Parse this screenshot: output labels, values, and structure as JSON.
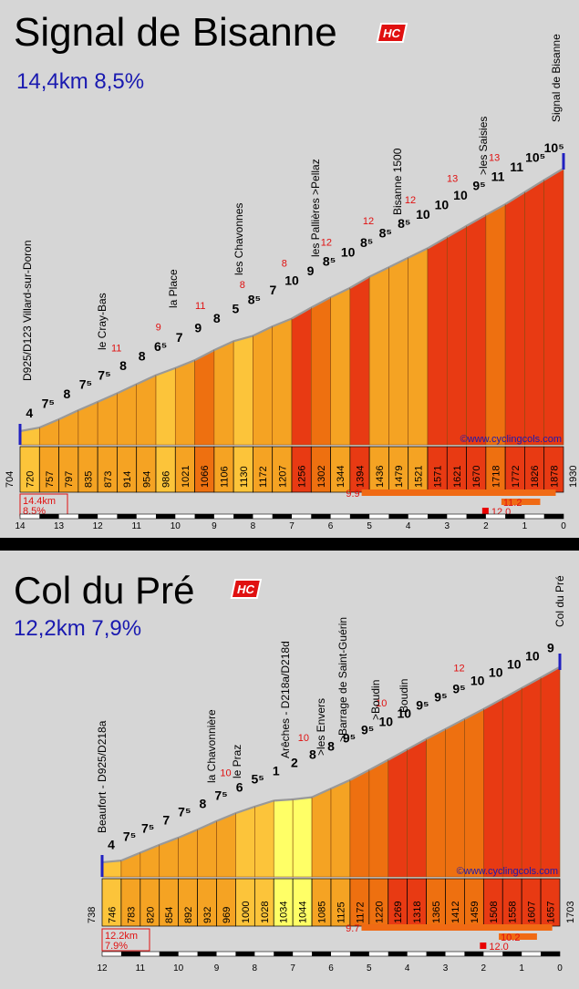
{
  "source": "©www.cyclingcols.com",
  "chart_data": [
    {
      "type": "bar",
      "title": "Signal de Bisanne",
      "badge": "HC",
      "summary": "14,4km 8,5%",
      "summary_box": [
        "14.4km",
        "8.5%"
      ],
      "start_altitude": "704",
      "end_altitude": "1930",
      "altitudes": [
        "720",
        "757",
        "797",
        "835",
        "873",
        "914",
        "954",
        "986",
        "1021",
        "1066",
        "1106",
        "1130",
        "1172",
        "1207",
        "1256",
        "1302",
        "1344",
        "1394",
        "1436",
        "1479",
        "1521",
        "1571",
        "1621",
        "1670",
        "1718",
        "1772",
        "1826",
        "1878"
      ],
      "gradients_half_km": [
        "4",
        "7⁵",
        "8",
        "7⁵",
        "7⁵",
        "8",
        "8",
        "6⁵",
        "7",
        "9",
        "8",
        "5",
        "8⁵",
        "7",
        "10",
        "9",
        "8⁵",
        "10",
        "8⁵",
        "8⁵",
        "8⁵",
        "10",
        "10",
        "10",
        "9⁵",
        "11",
        "11",
        "10⁵",
        "10⁵"
      ],
      "red_labels": [
        "11",
        "9",
        "11",
        "8",
        "8",
        "12",
        "12",
        "12",
        "13",
        "13"
      ],
      "places": [
        "D925/D123 Villard-sur-Doron",
        "le Cray-Bas",
        "la Place",
        "les Chavonnes",
        "les Pallières >Pellaz",
        "Bisanne 1500",
        ">les Saisies",
        "Signal de Bisanne"
      ],
      "km_ticks": [
        "14",
        "13",
        "12",
        "11",
        "10",
        "9",
        "8",
        "7",
        "6",
        "5",
        "4",
        "3",
        "2",
        "1",
        "0"
      ],
      "max_gradients": [
        "9.9",
        "11.2",
        "12.0"
      ],
      "colors": {
        "yellow": "#ffff66",
        "orange": "#f5a323",
        "dark_orange": "#ee7010",
        "red": "#e83a13",
        "max_bar": "#f06a14",
        "max_square": "#e80000"
      }
    },
    {
      "type": "bar",
      "title": "Col du Pré",
      "badge": "HC",
      "summary": "12,2km 7,9%",
      "summary_box": [
        "12.2km",
        "7.9%"
      ],
      "start_altitude": "738",
      "end_altitude": "1703",
      "altitudes": [
        "746",
        "783",
        "820",
        "854",
        "892",
        "932",
        "969",
        "1000",
        "1028",
        "1034",
        "1044",
        "1085",
        "1125",
        "1172",
        "1220",
        "1269",
        "1318",
        "1365",
        "1412",
        "1459",
        "1508",
        "1558",
        "1607",
        "1657"
      ],
      "gradients_half_km": [
        "4",
        "7⁵",
        "7⁵",
        "7",
        "7⁵",
        "8",
        "7⁵",
        "6",
        "5⁵",
        "1",
        "2",
        "8",
        "8",
        "9⁵",
        "9⁵",
        "10",
        "10",
        "9⁵",
        "9⁵",
        "9⁵",
        "10",
        "10",
        "10",
        "10",
        "9"
      ],
      "red_labels": [
        "10",
        "10",
        "10",
        "12"
      ],
      "places": [
        "Beaufort - D925/D218a",
        "la Chavonnière",
        "le Praz",
        "Arêches - D218a/D218d",
        ">les Envers",
        ">Barrage de Saint-Guérin",
        ">Boudin",
        "Boudin",
        "Col du Pré"
      ],
      "km_ticks": [
        "12",
        "11",
        "10",
        "9",
        "8",
        "7",
        "6",
        "5",
        "4",
        "3",
        "2",
        "1",
        "0"
      ],
      "max_gradients": [
        "9.7",
        "10.2",
        "12.0"
      ],
      "colors": {
        "yellow": "#ffff66",
        "orange": "#f5a323",
        "dark_orange": "#ee7010",
        "red": "#e83a13",
        "max_bar": "#f06a14",
        "max_square": "#e80000"
      }
    }
  ]
}
